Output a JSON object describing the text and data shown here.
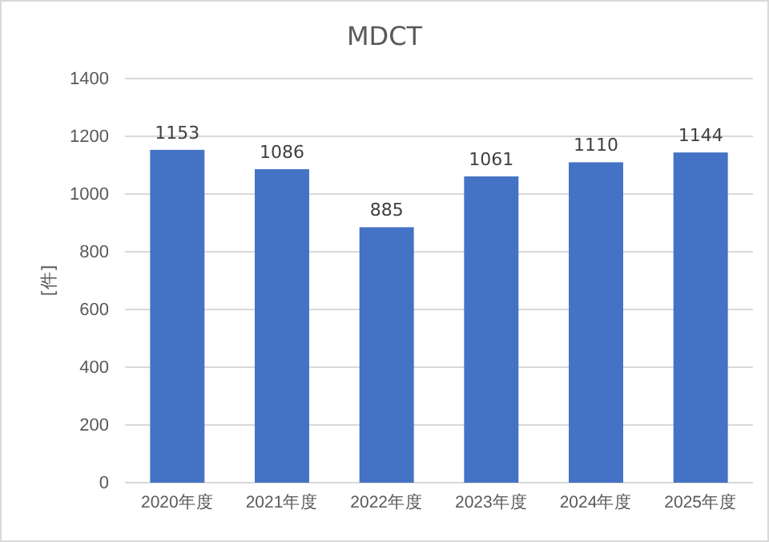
{
  "chart_data": {
    "type": "bar",
    "title": "MDCT",
    "ylabel": "[件]",
    "categories": [
      "2020年度",
      "2021年度",
      "2022年度",
      "2023年度",
      "2024年度",
      "2025年度"
    ],
    "values": [
      1153,
      1086,
      885,
      1061,
      1110,
      1144
    ],
    "color": "#4472c4",
    "ylim": [
      0,
      1400
    ],
    "yticks": [
      0,
      200,
      400,
      600,
      800,
      1000,
      1200,
      1400
    ],
    "grid": "y",
    "data_labels": true
  }
}
